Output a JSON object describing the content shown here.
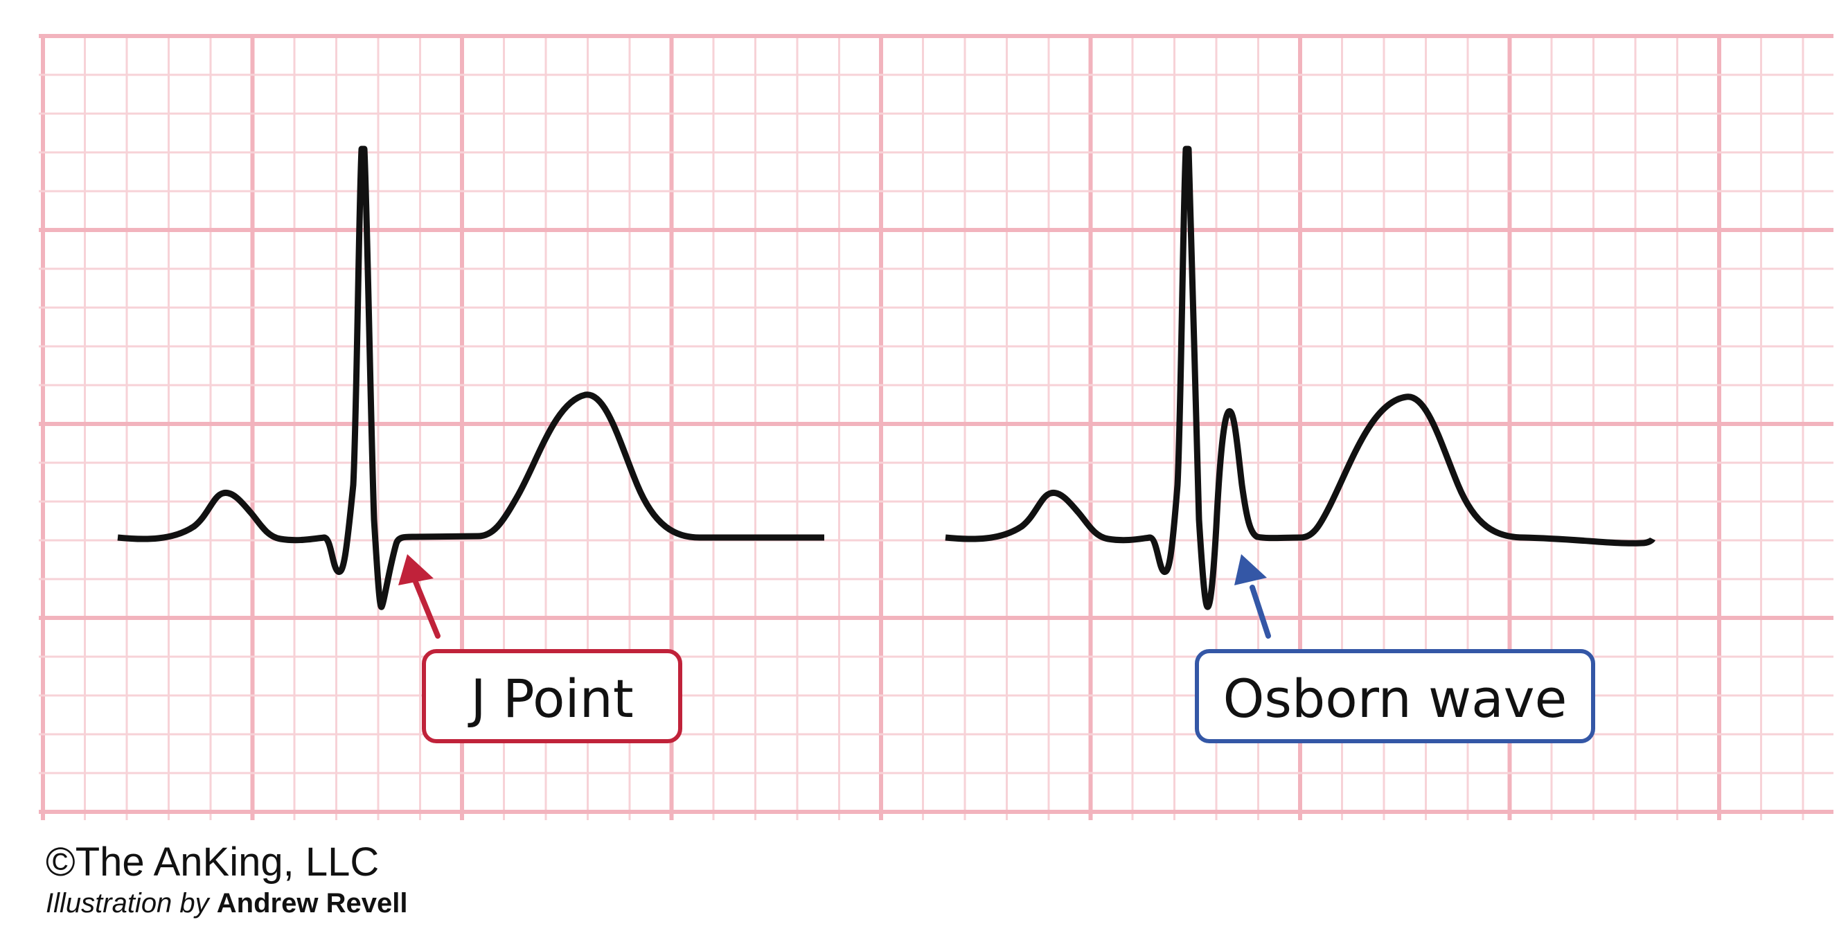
{
  "colors": {
    "grid_minor": "#f7d2d7",
    "grid_major": "#f2b3bd",
    "trace": "#111111",
    "j_point_accent": "#c0223a",
    "osborn_accent": "#3457a6",
    "background": "#ffffff"
  },
  "labels": {
    "j_point": "J Point",
    "osborn_wave": "Osborn wave"
  },
  "credit": {
    "copyright": "©The AnKing, LLC",
    "illustration_prefix": "Illustration by",
    "author": "Andrew Revell"
  }
}
